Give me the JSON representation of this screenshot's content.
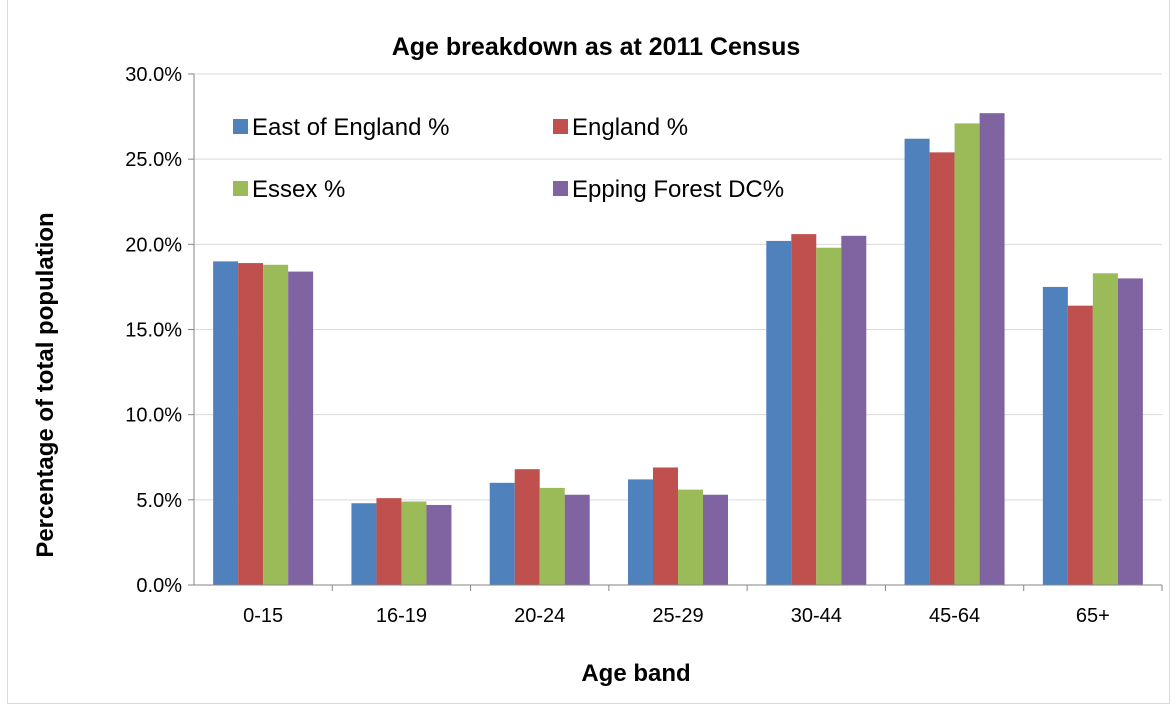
{
  "chart_data": {
    "type": "bar",
    "title": "Age breakdown as at 2011 Census",
    "xlabel": "Age band",
    "ylabel": "Percentage of total population",
    "categories": [
      "0-15",
      "16-19",
      "20-24",
      "25-29",
      "30-44",
      "45-64",
      "65+"
    ],
    "ylim": [
      0,
      30
    ],
    "yticks": [
      0,
      5,
      10,
      15,
      20,
      25,
      30
    ],
    "ytick_labels": [
      "0.0%",
      "5.0%",
      "10.0%",
      "15.0%",
      "20.0%",
      "25.0%",
      "30.0%"
    ],
    "grid": true,
    "legend_position": "top-left",
    "series": [
      {
        "name": "East of England %",
        "color": "#4f81bd",
        "values": [
          19.0,
          4.8,
          6.0,
          6.2,
          20.2,
          26.2,
          17.5
        ]
      },
      {
        "name": "England %",
        "color": "#c0504d",
        "values": [
          18.9,
          5.1,
          6.8,
          6.9,
          20.6,
          25.4,
          16.4
        ]
      },
      {
        "name": "Essex %",
        "color": "#9bbb59",
        "values": [
          18.8,
          4.9,
          5.7,
          5.6,
          19.8,
          27.1,
          18.3
        ]
      },
      {
        "name": "Epping Forest DC%",
        "color": "#8064a2",
        "values": [
          18.4,
          4.7,
          5.3,
          5.3,
          20.5,
          27.7,
          18.0
        ]
      }
    ]
  }
}
